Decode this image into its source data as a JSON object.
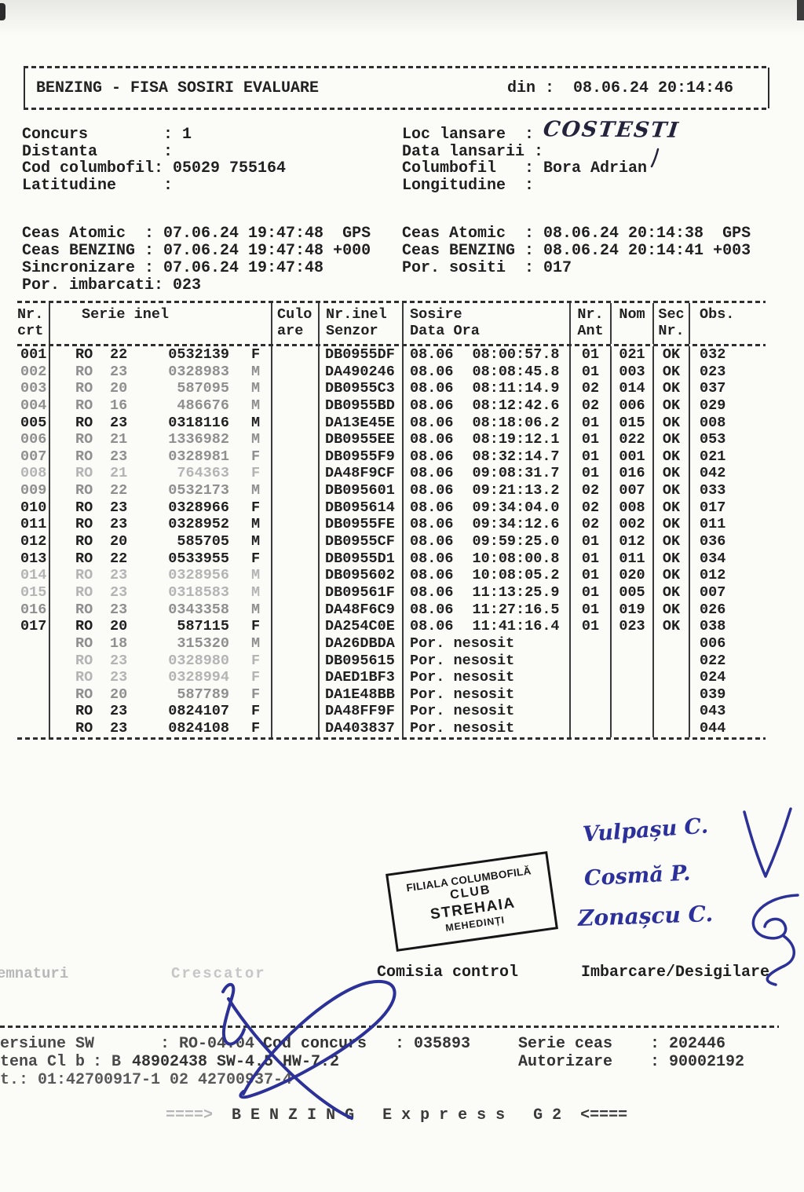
{
  "header_box": {
    "title": "BENZING - FISA SOSIRI EVALUARE",
    "din": "din :  08.06.24 20:14:46"
  },
  "info": {
    "left": [
      "Concurs        : 1",
      "",
      "Distanta       :",
      "Cod columbofil: 05029 755164",
      "Latitudine     :"
    ],
    "right": [
      "Loc lansare  :",
      "",
      "Data lansarii :",
      "Columbofil   : Bora Adrian",
      "Longitudine  :"
    ]
  },
  "clocks": {
    "left": [
      "Ceas Atomic  : 07.06.24 19:47:48  GPS",
      "Ceas BENZING : 07.06.24 19:47:48 +000",
      "Sincronizare : 07.06.24 19:47:48",
      "Por. imbarcati: 023"
    ],
    "right": [
      "Ceas Atomic  : 08.06.24 20:14:38  GPS",
      "Ceas BENZING : 08.06.24 20:14:41 +003",
      "",
      "Por. sositi  : 017"
    ]
  },
  "table": {
    "headers": {
      "nr": "Nr.\ncrt",
      "serie": "Serie inel",
      "culoare": "Culo\nare",
      "senzor": "Nr.inel\nSenzor",
      "sosire": "Sosire\nData  Ora",
      "ant": "Nr.\nAnt",
      "nom": "Nom",
      "sec": "Sec\nNr.",
      "obs": "Obs."
    },
    "rows": [
      {
        "nr": "001",
        "country": "RO",
        "year": "22",
        "ring": "0532139",
        "sex": "F",
        "senzor": "DB0955DF",
        "date": "08.06",
        "time": "08:00:57.8",
        "ant": "01",
        "nom": "021",
        "sec": "OK",
        "obs": "032",
        "fade": 0
      },
      {
        "nr": "002",
        "country": "RO",
        "year": "23",
        "ring": "0328983",
        "sex": "M",
        "senzor": "DA490246",
        "date": "08.06",
        "time": "08:08:45.8",
        "ant": "01",
        "nom": "003",
        "sec": "OK",
        "obs": "023",
        "fade": 1
      },
      {
        "nr": "003",
        "country": "RO",
        "year": "20",
        "ring": "587095",
        "sex": "M",
        "senzor": "DB0955C3",
        "date": "08.06",
        "time": "08:11:14.9",
        "ant": "02",
        "nom": "014",
        "sec": "OK",
        "obs": "037",
        "fade": 1
      },
      {
        "nr": "004",
        "country": "RO",
        "year": "16",
        "ring": "486676",
        "sex": "M",
        "senzor": "DB0955BD",
        "date": "08.06",
        "time": "08:12:42.6",
        "ant": "02",
        "nom": "006",
        "sec": "OK",
        "obs": "029",
        "fade": 1
      },
      {
        "nr": "005",
        "country": "RO",
        "year": "23",
        "ring": "0318116",
        "sex": "M",
        "senzor": "DA13E45E",
        "date": "08.06",
        "time": "08:18:06.2",
        "ant": "01",
        "nom": "015",
        "sec": "OK",
        "obs": "008",
        "fade": 0
      },
      {
        "nr": "006",
        "country": "RO",
        "year": "21",
        "ring": "1336982",
        "sex": "M",
        "senzor": "DB0955EE",
        "date": "08.06",
        "time": "08:19:12.1",
        "ant": "01",
        "nom": "022",
        "sec": "OK",
        "obs": "053",
        "fade": 1
      },
      {
        "nr": "007",
        "country": "RO",
        "year": "23",
        "ring": "0328981",
        "sex": "F",
        "senzor": "DB0955F9",
        "date": "08.06",
        "time": "08:32:14.7",
        "ant": "01",
        "nom": "001",
        "sec": "OK",
        "obs": "021",
        "fade": 1
      },
      {
        "nr": "008",
        "country": "RO",
        "year": "21",
        "ring": "764363",
        "sex": "F",
        "senzor": "DA48F9CF",
        "date": "08.06",
        "time": "09:08:31.7",
        "ant": "01",
        "nom": "016",
        "sec": "OK",
        "obs": "042",
        "fade": 2
      },
      {
        "nr": "009",
        "country": "RO",
        "year": "22",
        "ring": "0532173",
        "sex": "M",
        "senzor": "DB095601",
        "date": "08.06",
        "time": "09:21:13.2",
        "ant": "02",
        "nom": "007",
        "sec": "OK",
        "obs": "033",
        "fade": 1
      },
      {
        "nr": "010",
        "country": "RO",
        "year": "23",
        "ring": "0328966",
        "sex": "F",
        "senzor": "DB095614",
        "date": "08.06",
        "time": "09:34:04.0",
        "ant": "02",
        "nom": "008",
        "sec": "OK",
        "obs": "017",
        "fade": 0
      },
      {
        "nr": "011",
        "country": "RO",
        "year": "23",
        "ring": "0328952",
        "sex": "M",
        "senzor": "DB0955FE",
        "date": "08.06",
        "time": "09:34:12.6",
        "ant": "02",
        "nom": "002",
        "sec": "OK",
        "obs": "011",
        "fade": 0
      },
      {
        "nr": "012",
        "country": "RO",
        "year": "20",
        "ring": "585705",
        "sex": "M",
        "senzor": "DB0955CF",
        "date": "08.06",
        "time": "09:59:25.0",
        "ant": "01",
        "nom": "012",
        "sec": "OK",
        "obs": "036",
        "fade": 0
      },
      {
        "nr": "013",
        "country": "RO",
        "year": "22",
        "ring": "0533955",
        "sex": "F",
        "senzor": "DB0955D1",
        "date": "08.06",
        "time": "10:08:00.8",
        "ant": "01",
        "nom": "011",
        "sec": "OK",
        "obs": "034",
        "fade": 0
      },
      {
        "nr": "014",
        "country": "RO",
        "year": "23",
        "ring": "0328956",
        "sex": "M",
        "senzor": "DB095602",
        "date": "08.06",
        "time": "10:08:05.2",
        "ant": "01",
        "nom": "020",
        "sec": "OK",
        "obs": "012",
        "fade": 2
      },
      {
        "nr": "015",
        "country": "RO",
        "year": "23",
        "ring": "0318583",
        "sex": "M",
        "senzor": "DB09561F",
        "date": "08.06",
        "time": "11:13:25.9",
        "ant": "01",
        "nom": "005",
        "sec": "OK",
        "obs": "007",
        "fade": 2
      },
      {
        "nr": "016",
        "country": "RO",
        "year": "23",
        "ring": "0343358",
        "sex": "M",
        "senzor": "DA48F6C9",
        "date": "08.06",
        "time": "11:27:16.5",
        "ant": "01",
        "nom": "019",
        "sec": "OK",
        "obs": "026",
        "fade": 1
      },
      {
        "nr": "017",
        "country": "RO",
        "year": "20",
        "ring": "587115",
        "sex": "F",
        "senzor": "DA254C0E",
        "date": "08.06",
        "time": "11:41:16.4",
        "ant": "01",
        "nom": "023",
        "sec": "OK",
        "obs": "038",
        "fade": 0
      },
      {
        "nr": "",
        "country": "RO",
        "year": "18",
        "ring": "315320",
        "sex": "M",
        "senzor": "DA26DBDA",
        "status": "Por. nesosit",
        "ant": "",
        "nom": "",
        "sec": "",
        "obs": "006",
        "fade": 1
      },
      {
        "nr": "",
        "country": "RO",
        "year": "23",
        "ring": "0328980",
        "sex": "F",
        "senzor": "DB095615",
        "status": "Por. nesosit",
        "ant": "",
        "nom": "",
        "sec": "",
        "obs": "022",
        "fade": 2
      },
      {
        "nr": "",
        "country": "RO",
        "year": "23",
        "ring": "0328994",
        "sex": "F",
        "senzor": "DAED1BF3",
        "status": "Por. nesosit",
        "ant": "",
        "nom": "",
        "sec": "",
        "obs": "024",
        "fade": 2
      },
      {
        "nr": "",
        "country": "RO",
        "year": "20",
        "ring": "587789",
        "sex": "F",
        "senzor": "DA1E48BB",
        "status": "Por. nesosit",
        "ant": "",
        "nom": "",
        "sec": "",
        "obs": "039",
        "fade": 1
      },
      {
        "nr": "",
        "country": "RO",
        "year": "23",
        "ring": "0824107",
        "sex": "F",
        "senzor": "DA48FF9F",
        "status": "Por. nesosit",
        "ant": "",
        "nom": "",
        "sec": "",
        "obs": "043",
        "fade": 0
      },
      {
        "nr": "",
        "country": "RO",
        "year": "23",
        "ring": "0824108",
        "sex": "F",
        "senzor": "DA403837",
        "status": "Por. nesosit",
        "ant": "",
        "nom": "",
        "sec": "",
        "obs": "044",
        "fade": 0
      }
    ]
  },
  "stamp": {
    "lines": [
      "FILIALA COLUMBOFILĂ",
      "CLUB",
      "STREHAIA",
      "MEHEDINȚI"
    ]
  },
  "handwriting": {
    "loc_lansare": "COSTESTI",
    "signers": [
      "Vulpașu C.",
      "Cosmă P.",
      "Zonașcu C."
    ]
  },
  "signature_section": {
    "faded_left": "emnaturi",
    "faded_mid": "Crescator",
    "comisia": "Comisia control",
    "imbarcare": "Imbarcare/Desigilare"
  },
  "footer": {
    "versiune": "ersiune SW       : RO-04.04",
    "cod_concurs": "Cod concurs   : 035893",
    "serie_ceas": "Serie ceas    : 202446",
    "antena_faded": "tena Cl b",
    "antena_faint": ": B",
    "antena_dark": "48902438 SW-4.5 HW-7.2",
    "autorizare": "Autorizare    : 90002192",
    "bat": "t.: 01:42700917-1 02 42700937-4",
    "benzing_pre": "====>",
    "benzing_main": "B E N Z I N G   E x p r e s s   G 2",
    "benzing_post": "<===="
  }
}
